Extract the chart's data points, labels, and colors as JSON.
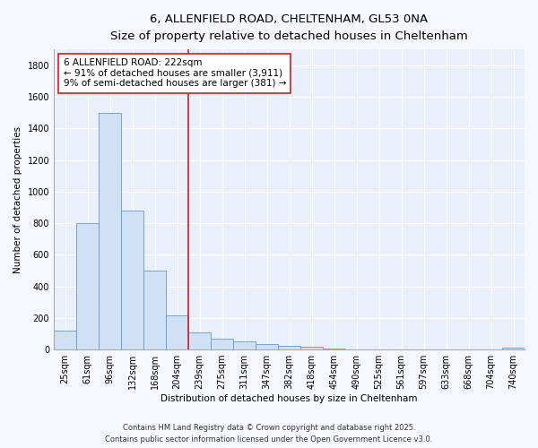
{
  "title_line1": "6, ALLENFIELD ROAD, CHELTENHAM, GL53 0NA",
  "title_line2": "Size of property relative to detached houses in Cheltenham",
  "xlabel": "Distribution of detached houses by size in Cheltenham",
  "ylabel": "Number of detached properties",
  "bar_color": "#d0e0f5",
  "bar_edge_color": "#6699cc",
  "background_color": "#eaf0fb",
  "grid_color": "#ffffff",
  "bins": [
    "25sqm",
    "61sqm",
    "96sqm",
    "132sqm",
    "168sqm",
    "204sqm",
    "239sqm",
    "275sqm",
    "311sqm",
    "347sqm",
    "382sqm",
    "418sqm",
    "454sqm",
    "490sqm",
    "525sqm",
    "561sqm",
    "597sqm",
    "633sqm",
    "668sqm",
    "704sqm",
    "740sqm"
  ],
  "values": [
    120,
    800,
    1500,
    880,
    500,
    215,
    110,
    70,
    50,
    35,
    25,
    15,
    5,
    3,
    2,
    1,
    0,
    0,
    0,
    0,
    10
  ],
  "red_line_x": 5.5,
  "annotation_text": "6 ALLENFIELD ROAD: 222sqm\n← 91% of detached houses are smaller (3,911)\n9% of semi-detached houses are larger (381) →",
  "ylim": [
    0,
    1900
  ],
  "yticks": [
    0,
    200,
    400,
    600,
    800,
    1000,
    1200,
    1400,
    1600,
    1800
  ],
  "footnote1": "Contains HM Land Registry data © Crown copyright and database right 2025.",
  "footnote2": "Contains public sector information licensed under the Open Government Licence v3.0.",
  "fig_bg_color": "#f5f8ff",
  "title1_fontsize": 9.5,
  "title2_fontsize": 8.5,
  "axis_fontsize": 7.5,
  "tick_fontsize": 7,
  "annot_fontsize": 7.5,
  "footnote_fontsize": 6
}
